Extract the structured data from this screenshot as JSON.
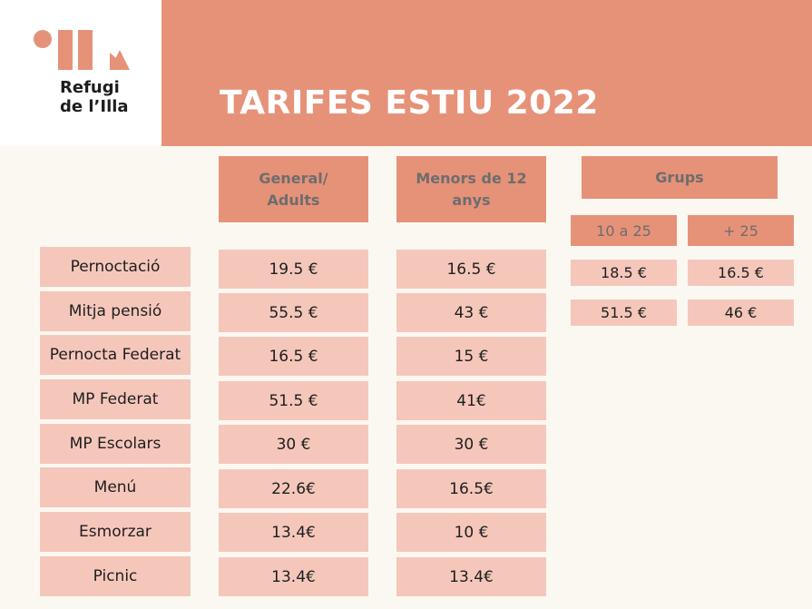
{
  "logo": {
    "line1": "Refugi",
    "line2": "de l’Illa",
    "mark_icon": "refugi-logo-mark"
  },
  "title": "TARIFES ESTIU 2022",
  "colors": {
    "accent": "#e69279",
    "cell": "#f5c7bb",
    "background": "#faf8f1"
  },
  "columns": {
    "general": "General/\nAdults",
    "menors": "Menors de 12\nanys",
    "grups": "Grups",
    "grups_sub": [
      "10 a 25",
      "+ 25"
    ]
  },
  "rows": [
    {
      "label": "Pernoctació",
      "general": "19.5 €",
      "menors": "16.5 €"
    },
    {
      "label": "Mitja pensió",
      "general": "55.5 €",
      "menors": "43 €"
    },
    {
      "label": "Pernocta Federat",
      "general": "16.5 €",
      "menors": "15 €"
    },
    {
      "label": "MP Federat",
      "general": "51.5 €",
      "menors": "41€"
    },
    {
      "label": "MP Escolars",
      "general": "30 €",
      "menors": "30 €"
    },
    {
      "label": "Menú",
      "general": "22.6€",
      "menors": "16.5€"
    },
    {
      "label": "Esmorzar",
      "general": "13.4€",
      "menors": "10 €"
    },
    {
      "label": "Picnic",
      "general": "13.4€",
      "menors": "13.4€"
    }
  ],
  "grups_rows": [
    {
      "a": "18.5 €",
      "b": "16.5 €"
    },
    {
      "a": "51.5 €",
      "b": "46 €"
    }
  ]
}
